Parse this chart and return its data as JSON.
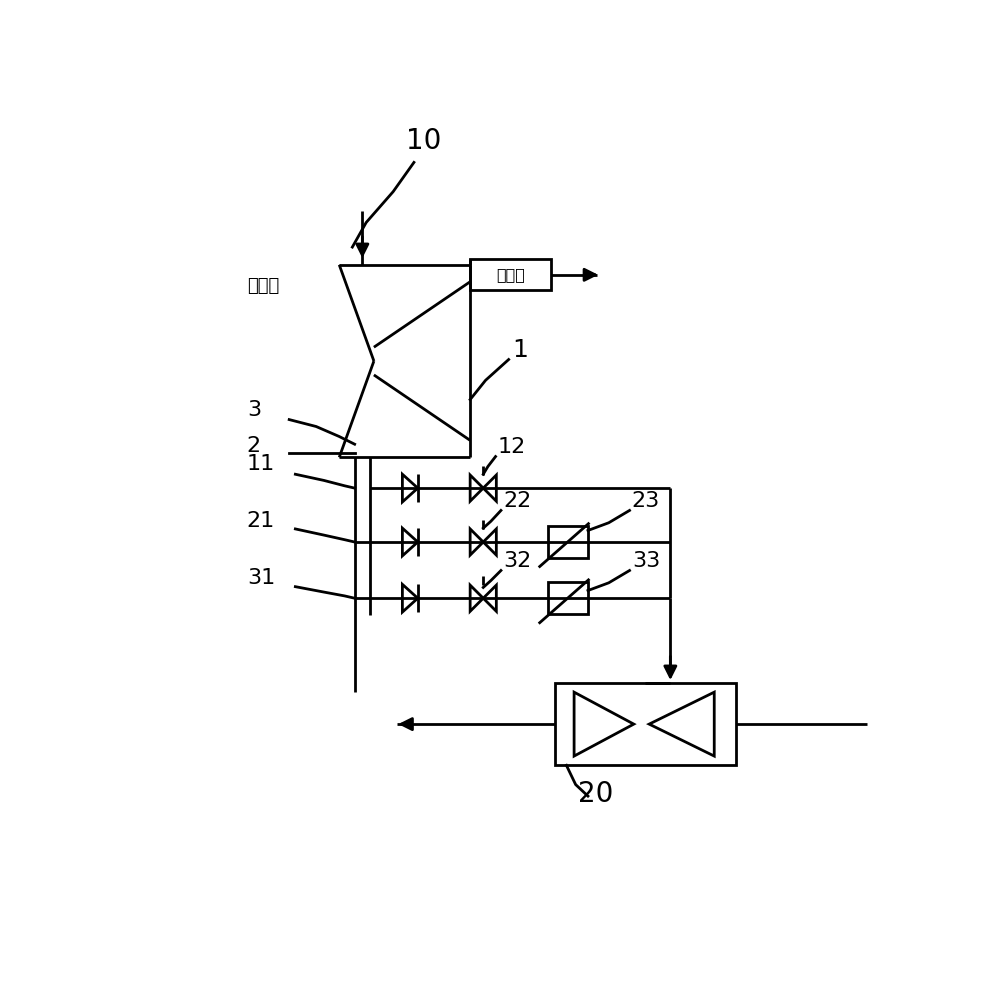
{
  "bg_color": "#ffffff",
  "line_color": "#000000",
  "line_width": 2.0,
  "labels": {
    "steam_in": "进汽口",
    "steam_out": "排汽口",
    "num_10": "10",
    "num_1": "1",
    "num_2": "2",
    "num_3": "3",
    "num_11": "11",
    "num_12": "12",
    "num_21": "21",
    "num_22": "22",
    "num_23": "23",
    "num_31": "31",
    "num_32": "32",
    "num_33": "33",
    "num_20": "20"
  }
}
